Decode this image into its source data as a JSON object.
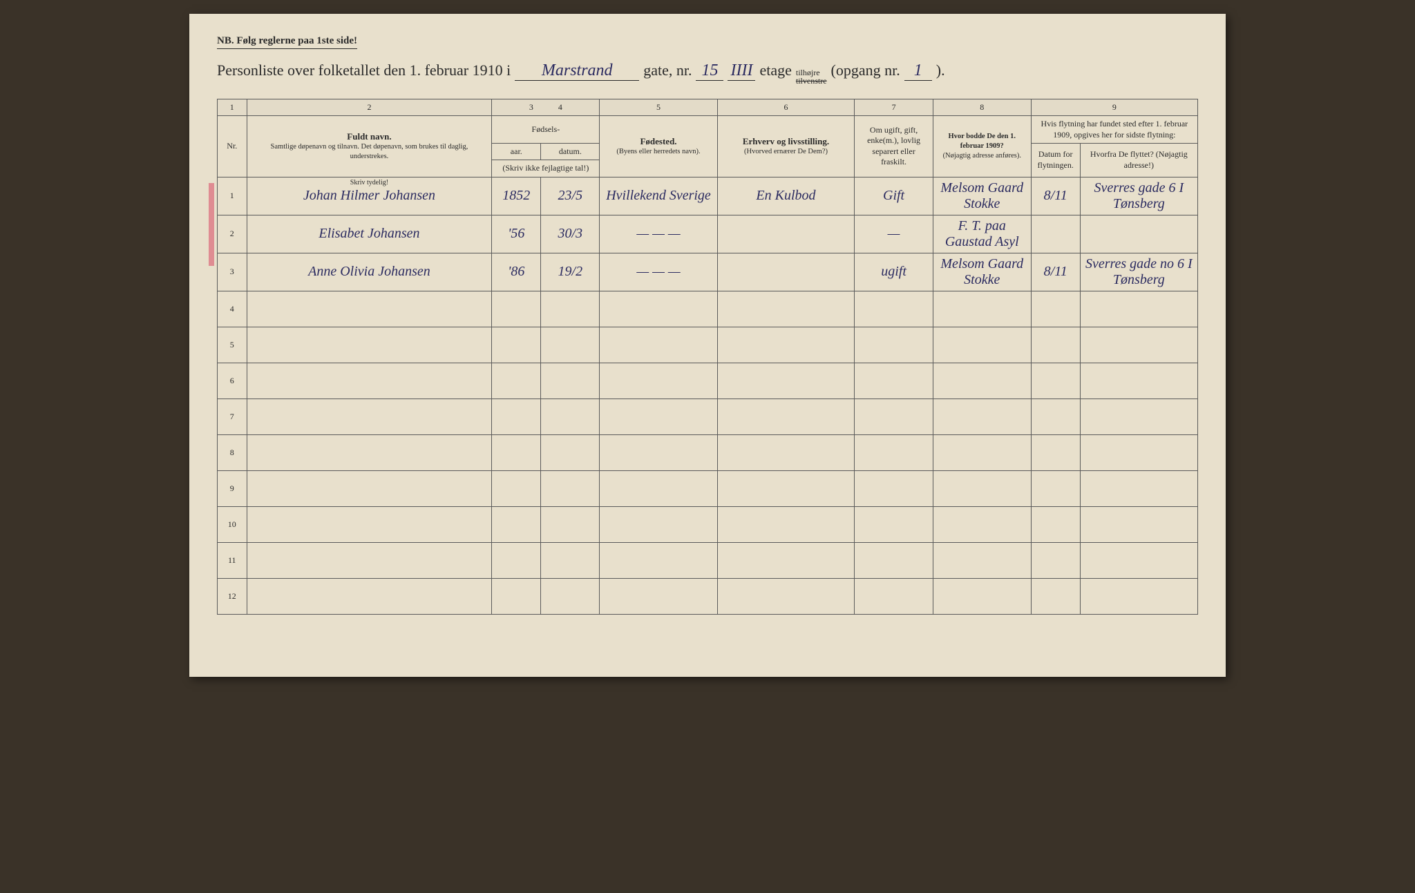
{
  "colors": {
    "paper": "#e8e0cc",
    "ink_print": "#2a2a2a",
    "ink_hand": "#2b2b60",
    "red_mark": "#d9536b",
    "border": "#5a5a5a"
  },
  "fonts": {
    "printed": "Georgia, serif",
    "handwritten": "Brush Script MT, cursive",
    "title_size_pt": 22,
    "header_size_pt": 12,
    "hand_size_pt": 20
  },
  "nb_text": "NB.  Følg reglerne paa 1ste side!",
  "title": {
    "prefix": "Personliste over folketallet den 1. februar 1910 i",
    "street_hand": "Marstrand",
    "gate_label": "gate, nr.",
    "nr_hand": "15",
    "etage_hand": "IIII",
    "etage_label": "etage",
    "tilhojre": "tilhøjre",
    "tilvenstre_struck": "tilvenstre",
    "opgang_label": "(opgang nr.",
    "opgang_hand": "1",
    "close_paren": ")."
  },
  "column_numbers": [
    "1",
    "2",
    "3",
    "4",
    "5",
    "6",
    "7",
    "8",
    "9"
  ],
  "headers": {
    "nr": "Nr.",
    "name_main": "Fuldt navn.",
    "name_sub": "Samtlige døpenavn og tilnavn. Det døpenavn, som brukes til daglig, understrekes.",
    "fodsels": "Fødsels-",
    "aar": "aar.",
    "datum": "datum.",
    "skriv_ikke": "(Skriv ikke fejlagtige tal!)",
    "fodested_main": "Fødested.",
    "fodested_sub": "(Byens eller herredets navn).",
    "erhverv_main": "Erhverv og livsstilling.",
    "erhverv_sub": "(Hvorved ernærer De Dem?)",
    "ugift": "Om ugift, gift, enke(m.), lovlig separert eller fraskilt.",
    "hvor_bodde_main": "Hvor bodde De den 1. februar 1909?",
    "hvor_bodde_sub": "(Nøjagtig adresse anføres).",
    "flytning_main": "Hvis flytning har fundet sted efter 1. februar 1909, opgives her for sidste flytning:",
    "flytning_datum": "Datum for flytningen.",
    "flytning_hvorfra": "Hvorfra De flyttet? (Nøjagtig adresse!)",
    "skriv_tydelig": "Skriv tydelig!"
  },
  "column_widths_pct": [
    3,
    25,
    5,
    6,
    12,
    14,
    8,
    10,
    5,
    12
  ],
  "rows": [
    {
      "nr": "1",
      "name": "Johan Hilmer Johansen",
      "aar": "1852",
      "datum": "23/5",
      "fodested": "Hvillekend Sverige",
      "erhverv": "En Kulbod",
      "ugift": "Gift",
      "bodde1909": "Melsom Gaard Stokke",
      "flyt_datum": "8/11",
      "flyt_hvorfra": "Sverres gade 6 I Tønsberg"
    },
    {
      "nr": "2",
      "name": "Elisabet Johansen",
      "aar": "'56",
      "datum": "30/3",
      "fodested": "— — —",
      "erhverv": "",
      "ugift": "—",
      "bodde1909": "F. T. paa Gaustad Asyl",
      "flyt_datum": "",
      "flyt_hvorfra": ""
    },
    {
      "nr": "3",
      "name": "Anne Olivia Johansen",
      "aar": "'86",
      "datum": "19/2",
      "fodested": "— — —",
      "erhverv": "",
      "ugift": "ugift",
      "bodde1909": "Melsom Gaard Stokke",
      "flyt_datum": "8/11",
      "flyt_hvorfra": "Sverres gade no 6 I Tønsberg"
    },
    {
      "nr": "4",
      "name": "",
      "aar": "",
      "datum": "",
      "fodested": "",
      "erhverv": "",
      "ugift": "",
      "bodde1909": "",
      "flyt_datum": "",
      "flyt_hvorfra": ""
    },
    {
      "nr": "5",
      "name": "",
      "aar": "",
      "datum": "",
      "fodested": "",
      "erhverv": "",
      "ugift": "",
      "bodde1909": "",
      "flyt_datum": "",
      "flyt_hvorfra": ""
    },
    {
      "nr": "6",
      "name": "",
      "aar": "",
      "datum": "",
      "fodested": "",
      "erhverv": "",
      "ugift": "",
      "bodde1909": "",
      "flyt_datum": "",
      "flyt_hvorfra": ""
    },
    {
      "nr": "7",
      "name": "",
      "aar": "",
      "datum": "",
      "fodested": "",
      "erhverv": "",
      "ugift": "",
      "bodde1909": "",
      "flyt_datum": "",
      "flyt_hvorfra": ""
    },
    {
      "nr": "8",
      "name": "",
      "aar": "",
      "datum": "",
      "fodested": "",
      "erhverv": "",
      "ugift": "",
      "bodde1909": "",
      "flyt_datum": "",
      "flyt_hvorfra": ""
    },
    {
      "nr": "9",
      "name": "",
      "aar": "",
      "datum": "",
      "fodested": "",
      "erhverv": "",
      "ugift": "",
      "bodde1909": "",
      "flyt_datum": "",
      "flyt_hvorfra": ""
    },
    {
      "nr": "10",
      "name": "",
      "aar": "",
      "datum": "",
      "fodested": "",
      "erhverv": "",
      "ugift": "",
      "bodde1909": "",
      "flyt_datum": "",
      "flyt_hvorfra": ""
    },
    {
      "nr": "11",
      "name": "",
      "aar": "",
      "datum": "",
      "fodested": "",
      "erhverv": "",
      "ugift": "",
      "bodde1909": "",
      "flyt_datum": "",
      "flyt_hvorfra": ""
    },
    {
      "nr": "12",
      "name": "",
      "aar": "",
      "datum": "",
      "fodested": "",
      "erhverv": "",
      "ugift": "",
      "bodde1909": "",
      "flyt_datum": "",
      "flyt_hvorfra": ""
    }
  ]
}
